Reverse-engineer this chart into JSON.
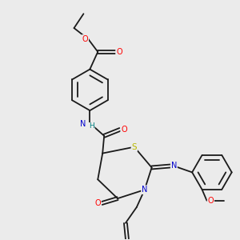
{
  "background_color": "#ebebeb",
  "bond_color": "#1a1a1a",
  "atom_colors": {
    "O": "#ff0000",
    "N": "#0000cc",
    "S": "#b8b800",
    "H": "#008080",
    "C": "#1a1a1a"
  },
  "figsize": [
    3.0,
    3.0
  ],
  "dpi": 100
}
